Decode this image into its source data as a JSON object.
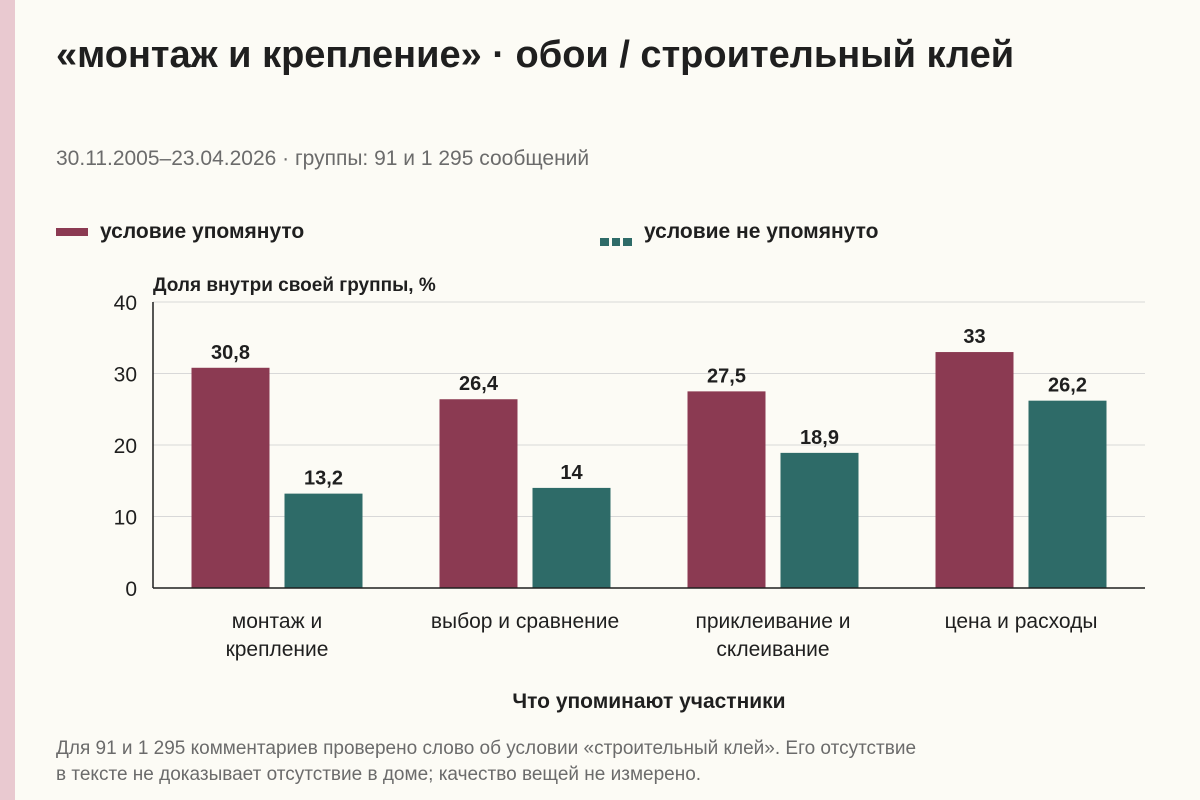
{
  "title": "«монтаж и крепление» · обои / строительный клей",
  "subtitle": "30.11.2005–23.04.2026 · группы: 91 и 1 295 сообщений",
  "footnote_line1": "Для 91 и 1 295 комментариев проверено слово об условии «строительный клей». Его отсутствие",
  "footnote_line2": "в тексте не доказывает отсутствие в доме; качество вещей не измерено.",
  "colors": {
    "accent": "#e9c9d0",
    "series1": "#8b3a52",
    "series2": "#2e6b68",
    "grid": "#d8d8d8",
    "axis": "#1f1f1f",
    "background": "#fcfbf5"
  },
  "chart_data": {
    "type": "bar",
    "ylabel": "Доля внутри своей группы, %",
    "xlabel": "Что упоминают участники",
    "ylim": [
      0,
      40
    ],
    "yticks": [
      0,
      10,
      20,
      30,
      40
    ],
    "grid": true,
    "legend_placement": "top",
    "categories": [
      [
        "монтаж и",
        "крепление"
      ],
      [
        "выбор и сравнение"
      ],
      [
        "приклеивание и",
        "склеивание"
      ],
      [
        "цена и расходы"
      ]
    ],
    "series": [
      {
        "name": "условие упомянуто",
        "values": [
          30.8,
          26.4,
          27.5,
          33
        ],
        "labels": [
          "30,8",
          "26,4",
          "27,5",
          "33"
        ]
      },
      {
        "name": "условие не упомянуто",
        "values": [
          13.2,
          14,
          18.9,
          26.2
        ],
        "labels": [
          "13,2",
          "14",
          "18,9",
          "26,2"
        ]
      }
    ]
  }
}
